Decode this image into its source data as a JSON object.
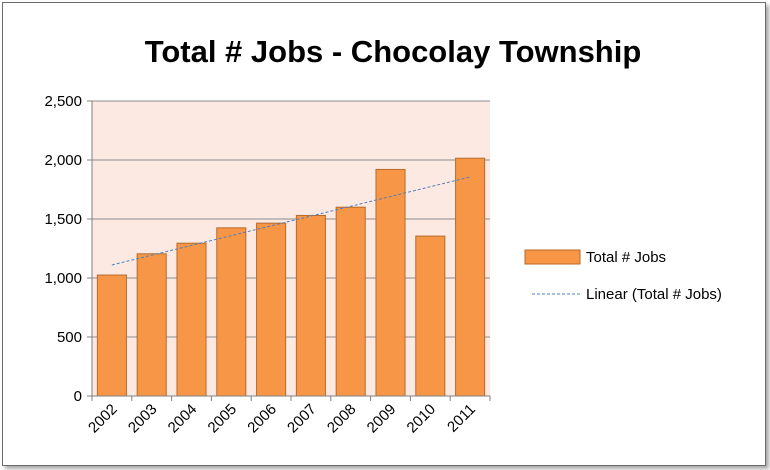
{
  "chart_data": {
    "type": "bar",
    "title": "Total # Jobs - Chocolay Township",
    "categories": [
      "2002",
      "2003",
      "2004",
      "2005",
      "2006",
      "2007",
      "2008",
      "2009",
      "2010",
      "2011"
    ],
    "series": [
      {
        "name": "Total # Jobs",
        "values": [
          1025,
          1205,
          1295,
          1425,
          1465,
          1530,
          1600,
          1920,
          1355,
          2015
        ]
      }
    ],
    "trendline": {
      "name": "Linear (Total # Jobs)",
      "type": "linear"
    },
    "ylim": [
      0,
      2500
    ],
    "yticks": [
      "0",
      "500",
      "1,000",
      "1,500",
      "2,000",
      "2,500"
    ],
    "ytick_values": [
      0,
      500,
      1000,
      1500,
      2000,
      2500
    ],
    "grid": true,
    "legend_position": "right",
    "colors": {
      "bar": "#f79646",
      "bar_border": "#b86a2a",
      "plot_bg": "#fbe9e2",
      "trend": "#4f81bd",
      "grid": "#8c8c8c"
    }
  }
}
